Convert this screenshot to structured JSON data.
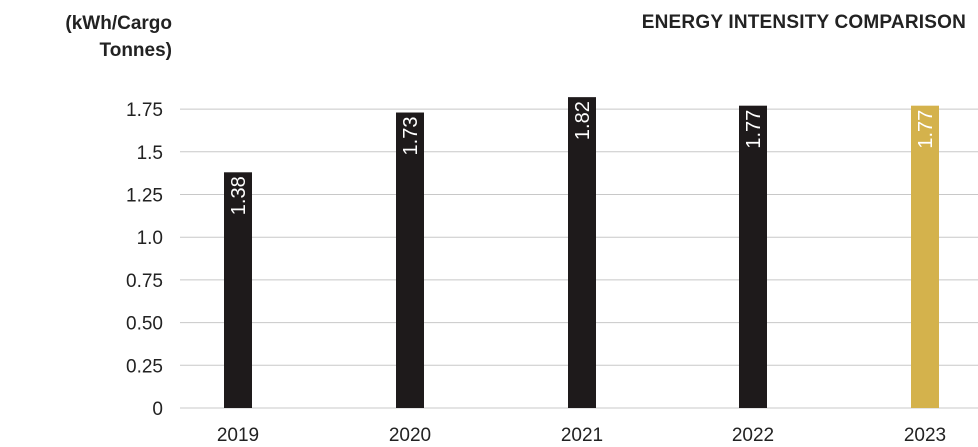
{
  "chart_data": {
    "type": "bar",
    "title": "ENERGY INTENSITY COMPARISON",
    "ylabel": "(kWh/Cargo Tonnes)",
    "xlabel": "",
    "categories": [
      "2019",
      "2020",
      "2021",
      "2022",
      "2023"
    ],
    "values": [
      1.38,
      1.73,
      1.82,
      1.77,
      1.77
    ],
    "data_labels": [
      "1.38",
      "1.73",
      "1.82",
      "1.77",
      "1.77"
    ],
    "yticks": [
      {
        "value": 0,
        "label": "0"
      },
      {
        "value": 0.25,
        "label": "0.25"
      },
      {
        "value": 0.5,
        "label": "0.50"
      },
      {
        "value": 0.75,
        "label": "0.75"
      },
      {
        "value": 1.0,
        "label": "1.0"
      },
      {
        "value": 1.25,
        "label": "1.25"
      },
      {
        "value": 1.5,
        "label": "1.5"
      },
      {
        "value": 1.75,
        "label": "1.75"
      }
    ],
    "ylim": [
      0,
      1.85
    ],
    "grid": true,
    "bar_colors": [
      "#1e1a1b",
      "#1e1a1b",
      "#1e1a1b",
      "#1e1a1b",
      "#d4b24c"
    ],
    "grid_color": "#c8c8c8"
  }
}
